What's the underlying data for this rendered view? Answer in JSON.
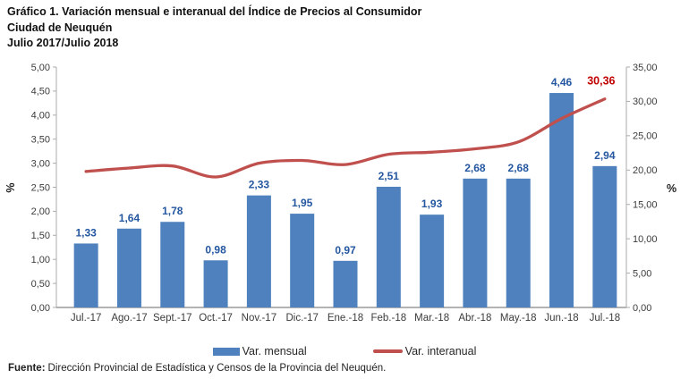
{
  "chart_data": {
    "type": "bar",
    "combo": "bar+line",
    "title": "Gráfico 1. Variación mensual e interanual del Índice de Precios al Consumidor",
    "subtitle1": "Ciudad de Neuquén",
    "subtitle2": "Julio 2017/Julio 2018",
    "grid": false,
    "legend_position": "bottom",
    "categories": [
      "Jul.-17",
      "Ago.-17",
      "Sept.-17",
      "Oct.-17",
      "Nov.-17",
      "Dic.-17",
      "Ene.-18",
      "Feb.-18",
      "Mar.-18",
      "Abr.-18",
      "May.-18",
      "Jun.-18",
      "Jul.-18"
    ],
    "series": [
      {
        "name": "Var. mensual",
        "type": "bar",
        "axis": "left",
        "color": "#4E81BD",
        "label_color": "#2457A0",
        "values": [
          1.33,
          1.64,
          1.78,
          0.98,
          2.33,
          1.95,
          0.97,
          2.51,
          1.93,
          2.68,
          2.68,
          4.46,
          2.94
        ],
        "labels": [
          "1,33",
          "1,64",
          "1,78",
          "0,98",
          "2,33",
          "1,95",
          "0,97",
          "2,51",
          "1,93",
          "2,68",
          "2,68",
          "4,46",
          "2,94"
        ]
      },
      {
        "name": "Var. interanual",
        "type": "line",
        "axis": "right",
        "color": "#C0504D",
        "end_label": "30,36",
        "end_label_color": "#C00000",
        "values": [
          19.8,
          20.3,
          20.6,
          19.0,
          21.0,
          21.4,
          20.8,
          22.3,
          22.6,
          23.1,
          24.1,
          27.5,
          30.36
        ]
      }
    ],
    "left_axis": {
      "label": "%",
      "min": 0,
      "max": 5,
      "step": 0.5,
      "tick_labels": [
        "0,00",
        "0,50",
        "1,00",
        "1,50",
        "2,00",
        "2,50",
        "3,00",
        "3,50",
        "4,00",
        "4,50",
        "5,00"
      ]
    },
    "right_axis": {
      "label": "%",
      "min": 0,
      "max": 35,
      "step": 5,
      "tick_labels": [
        "0,00",
        "5,00",
        "10,00",
        "15,00",
        "20,00",
        "25,00",
        "30,00",
        "35,00"
      ]
    },
    "axis_color": "#ABABAB",
    "tick_text_color": "#3C3C3C"
  },
  "footer": {
    "source_label": "Fuente:",
    "source_text": "Dirección Provincial de Estadística y Censos de la Provincia del Neuquén."
  }
}
